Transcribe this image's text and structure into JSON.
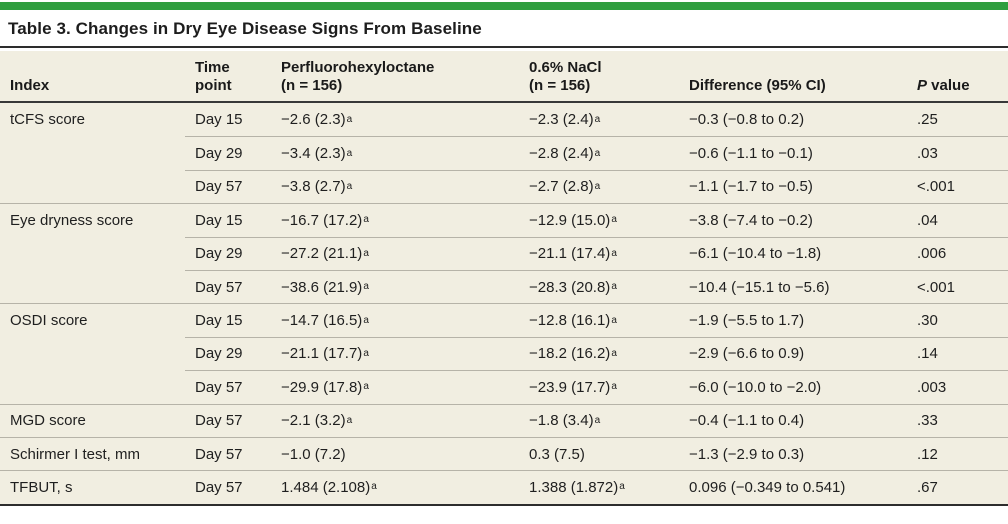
{
  "colors": {
    "accent_green": "#2f9e3f",
    "row_beige": "#f1eee1",
    "rule_gray": "#b6b3a8",
    "rule_dark": "#2d2d2d"
  },
  "title": "Table 3. Changes in Dry Eye Disease Signs From Baseline",
  "header": {
    "index": "Index",
    "time_line1": "Time",
    "time_line2": "point",
    "drug1_line1": "Perfluorohexyloctane",
    "drug1_line2": "(n = 156)",
    "drug2_line1": "0.6% NaCl",
    "drug2_line2": "(n = 156)",
    "difference": "Difference (95% CI)",
    "p_italic": "P",
    "p_rest": " value"
  },
  "rows": [
    {
      "index": "tCFS score",
      "time": "Day 15",
      "pfh": "−2.6 (2.3)",
      "pfh_sup": "a",
      "nacl": "−2.3 (2.4)",
      "nacl_sup": "a",
      "diff": "−0.3 (−0.8 to 0.2)",
      "p": ".25"
    },
    {
      "time": "Day 29",
      "pfh": "−3.4 (2.3)",
      "pfh_sup": "a",
      "nacl": "−2.8 (2.4)",
      "nacl_sup": "a",
      "diff": "−0.6 (−1.1 to −0.1)",
      "p": ".03"
    },
    {
      "time": "Day 57",
      "pfh": "−3.8 (2.7)",
      "pfh_sup": "a",
      "nacl": "−2.7 (2.8)",
      "nacl_sup": "a",
      "diff": "−1.1 (−1.7 to −0.5)",
      "p": "<.001"
    },
    {
      "index": "Eye dryness score",
      "time": "Day 15",
      "pfh": "−16.7 (17.2)",
      "pfh_sup": "a",
      "nacl": "−12.9 (15.0)",
      "nacl_sup": "a",
      "diff": "−3.8 (−7.4 to −0.2)",
      "p": ".04"
    },
    {
      "time": "Day 29",
      "pfh": "−27.2 (21.1)",
      "pfh_sup": "a",
      "nacl": "−21.1 (17.4)",
      "nacl_sup": "a",
      "diff": "−6.1 (−10.4 to −1.8)",
      "p": ".006"
    },
    {
      "time": "Day 57",
      "pfh": "−38.6 (21.9)",
      "pfh_sup": "a",
      "nacl": "−28.3 (20.8)",
      "nacl_sup": "a",
      "diff": "−10.4 (−15.1 to −5.6)",
      "p": "<.001"
    },
    {
      "index": "OSDI score",
      "time": "Day 15",
      "pfh": "−14.7 (16.5)",
      "pfh_sup": "a",
      "nacl": "−12.8 (16.1)",
      "nacl_sup": "a",
      "diff": "−1.9 (−5.5 to 1.7)",
      "p": ".30"
    },
    {
      "time": "Day 29",
      "pfh": "−21.1 (17.7)",
      "pfh_sup": "a",
      "nacl": "−18.2 (16.2)",
      "nacl_sup": "a",
      "diff": "−2.9 (−6.6 to 0.9)",
      "p": ".14"
    },
    {
      "time": "Day 57",
      "pfh": "−29.9 (17.8)",
      "pfh_sup": "a",
      "nacl": "−23.9 (17.7)",
      "nacl_sup": "a",
      "diff": "−6.0 (−10.0 to −2.0)",
      "p": ".003"
    },
    {
      "index": "MGD score",
      "time": "Day 57",
      "pfh": "−2.1 (3.2)",
      "pfh_sup": "a",
      "nacl": "−1.8 (3.4)",
      "nacl_sup": "a",
      "diff": "−0.4 (−1.1 to 0.4)",
      "p": ".33"
    },
    {
      "index": "Schirmer I test, mm",
      "time": "Day 57",
      "pfh": "−1.0 (7.2)",
      "pfh_sup": "",
      "nacl": "0.3 (7.5)",
      "nacl_sup": "",
      "diff": "−1.3 (−2.9 to 0.3)",
      "p": ".12"
    },
    {
      "index": "TFBUT, s",
      "time": "Day 57",
      "pfh": "1.484 (2.108)",
      "pfh_sup": "a",
      "nacl": "1.388 (1.872)",
      "nacl_sup": "a",
      "diff": "0.096 (−0.349 to 0.541)",
      "p": ".67"
    }
  ]
}
